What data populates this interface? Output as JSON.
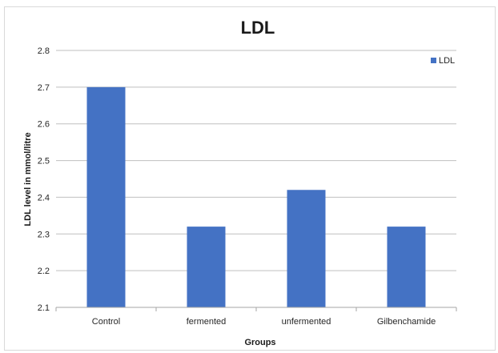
{
  "chart_data": {
    "type": "bar",
    "title": "LDL",
    "xlabel": "Groups",
    "ylabel": "LDL level in mmol/litre",
    "categories": [
      "Control",
      "fermented",
      "unfermented",
      "Gilbenchamide"
    ],
    "series": [
      {
        "name": "LDL",
        "values": [
          2.7,
          2.32,
          2.42,
          2.32
        ],
        "color": "#4472C4"
      }
    ],
    "ylim": [
      2.1,
      2.8
    ],
    "yticks": [
      "2.1",
      "2.2",
      "2.3",
      "2.4",
      "2.5",
      "2.6",
      "2.7",
      "2.8"
    ],
    "grid": true,
    "legend_position": "top-right",
    "colors": {
      "gridline": "#bfbfbf",
      "axis": "#a6a6a6"
    }
  }
}
